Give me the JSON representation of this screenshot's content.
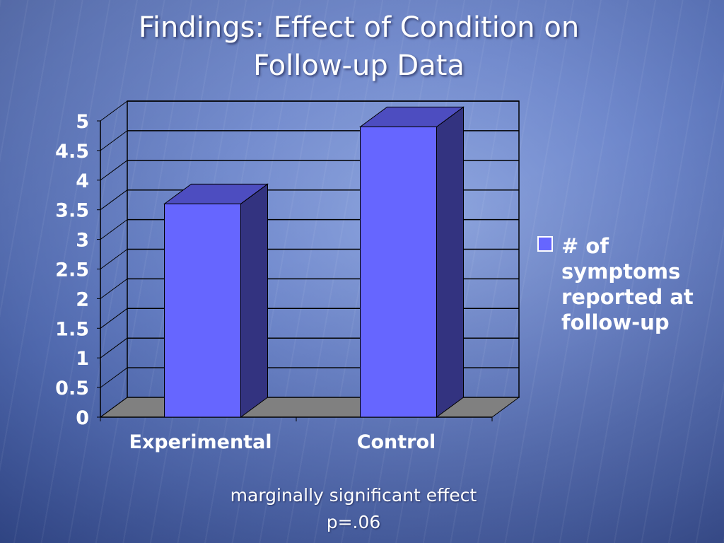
{
  "slide": {
    "title_line1": "Findings: Effect of Condition on",
    "title_line2": "Follow-up Data",
    "note_line1": "marginally significant effect",
    "note_line2": "p=.06"
  },
  "chart_data": {
    "type": "bar",
    "style": "3d-column",
    "categories": [
      "Experimental",
      "Control"
    ],
    "series": [
      {
        "name": "# of symptoms reported at follow-up",
        "values": [
          3.6,
          4.9
        ],
        "color": "#6666ff"
      }
    ],
    "ylim": [
      0,
      5
    ],
    "yticks": [
      0,
      0.5,
      1,
      1.5,
      2,
      2.5,
      3,
      3.5,
      4,
      4.5,
      5
    ],
    "ytick_labels": [
      "0",
      "0.5",
      "1",
      "1.5",
      "2",
      "2.5",
      "3",
      "3.5",
      "4",
      "4.5",
      "5"
    ],
    "grid": true,
    "legend_position": "right",
    "colors": {
      "bar_front": "#6666ff",
      "bar_side": "#333380",
      "bar_top": "#4d4dc0",
      "floor": "#808080",
      "grid": "#000000",
      "text": "#ffffff"
    }
  }
}
